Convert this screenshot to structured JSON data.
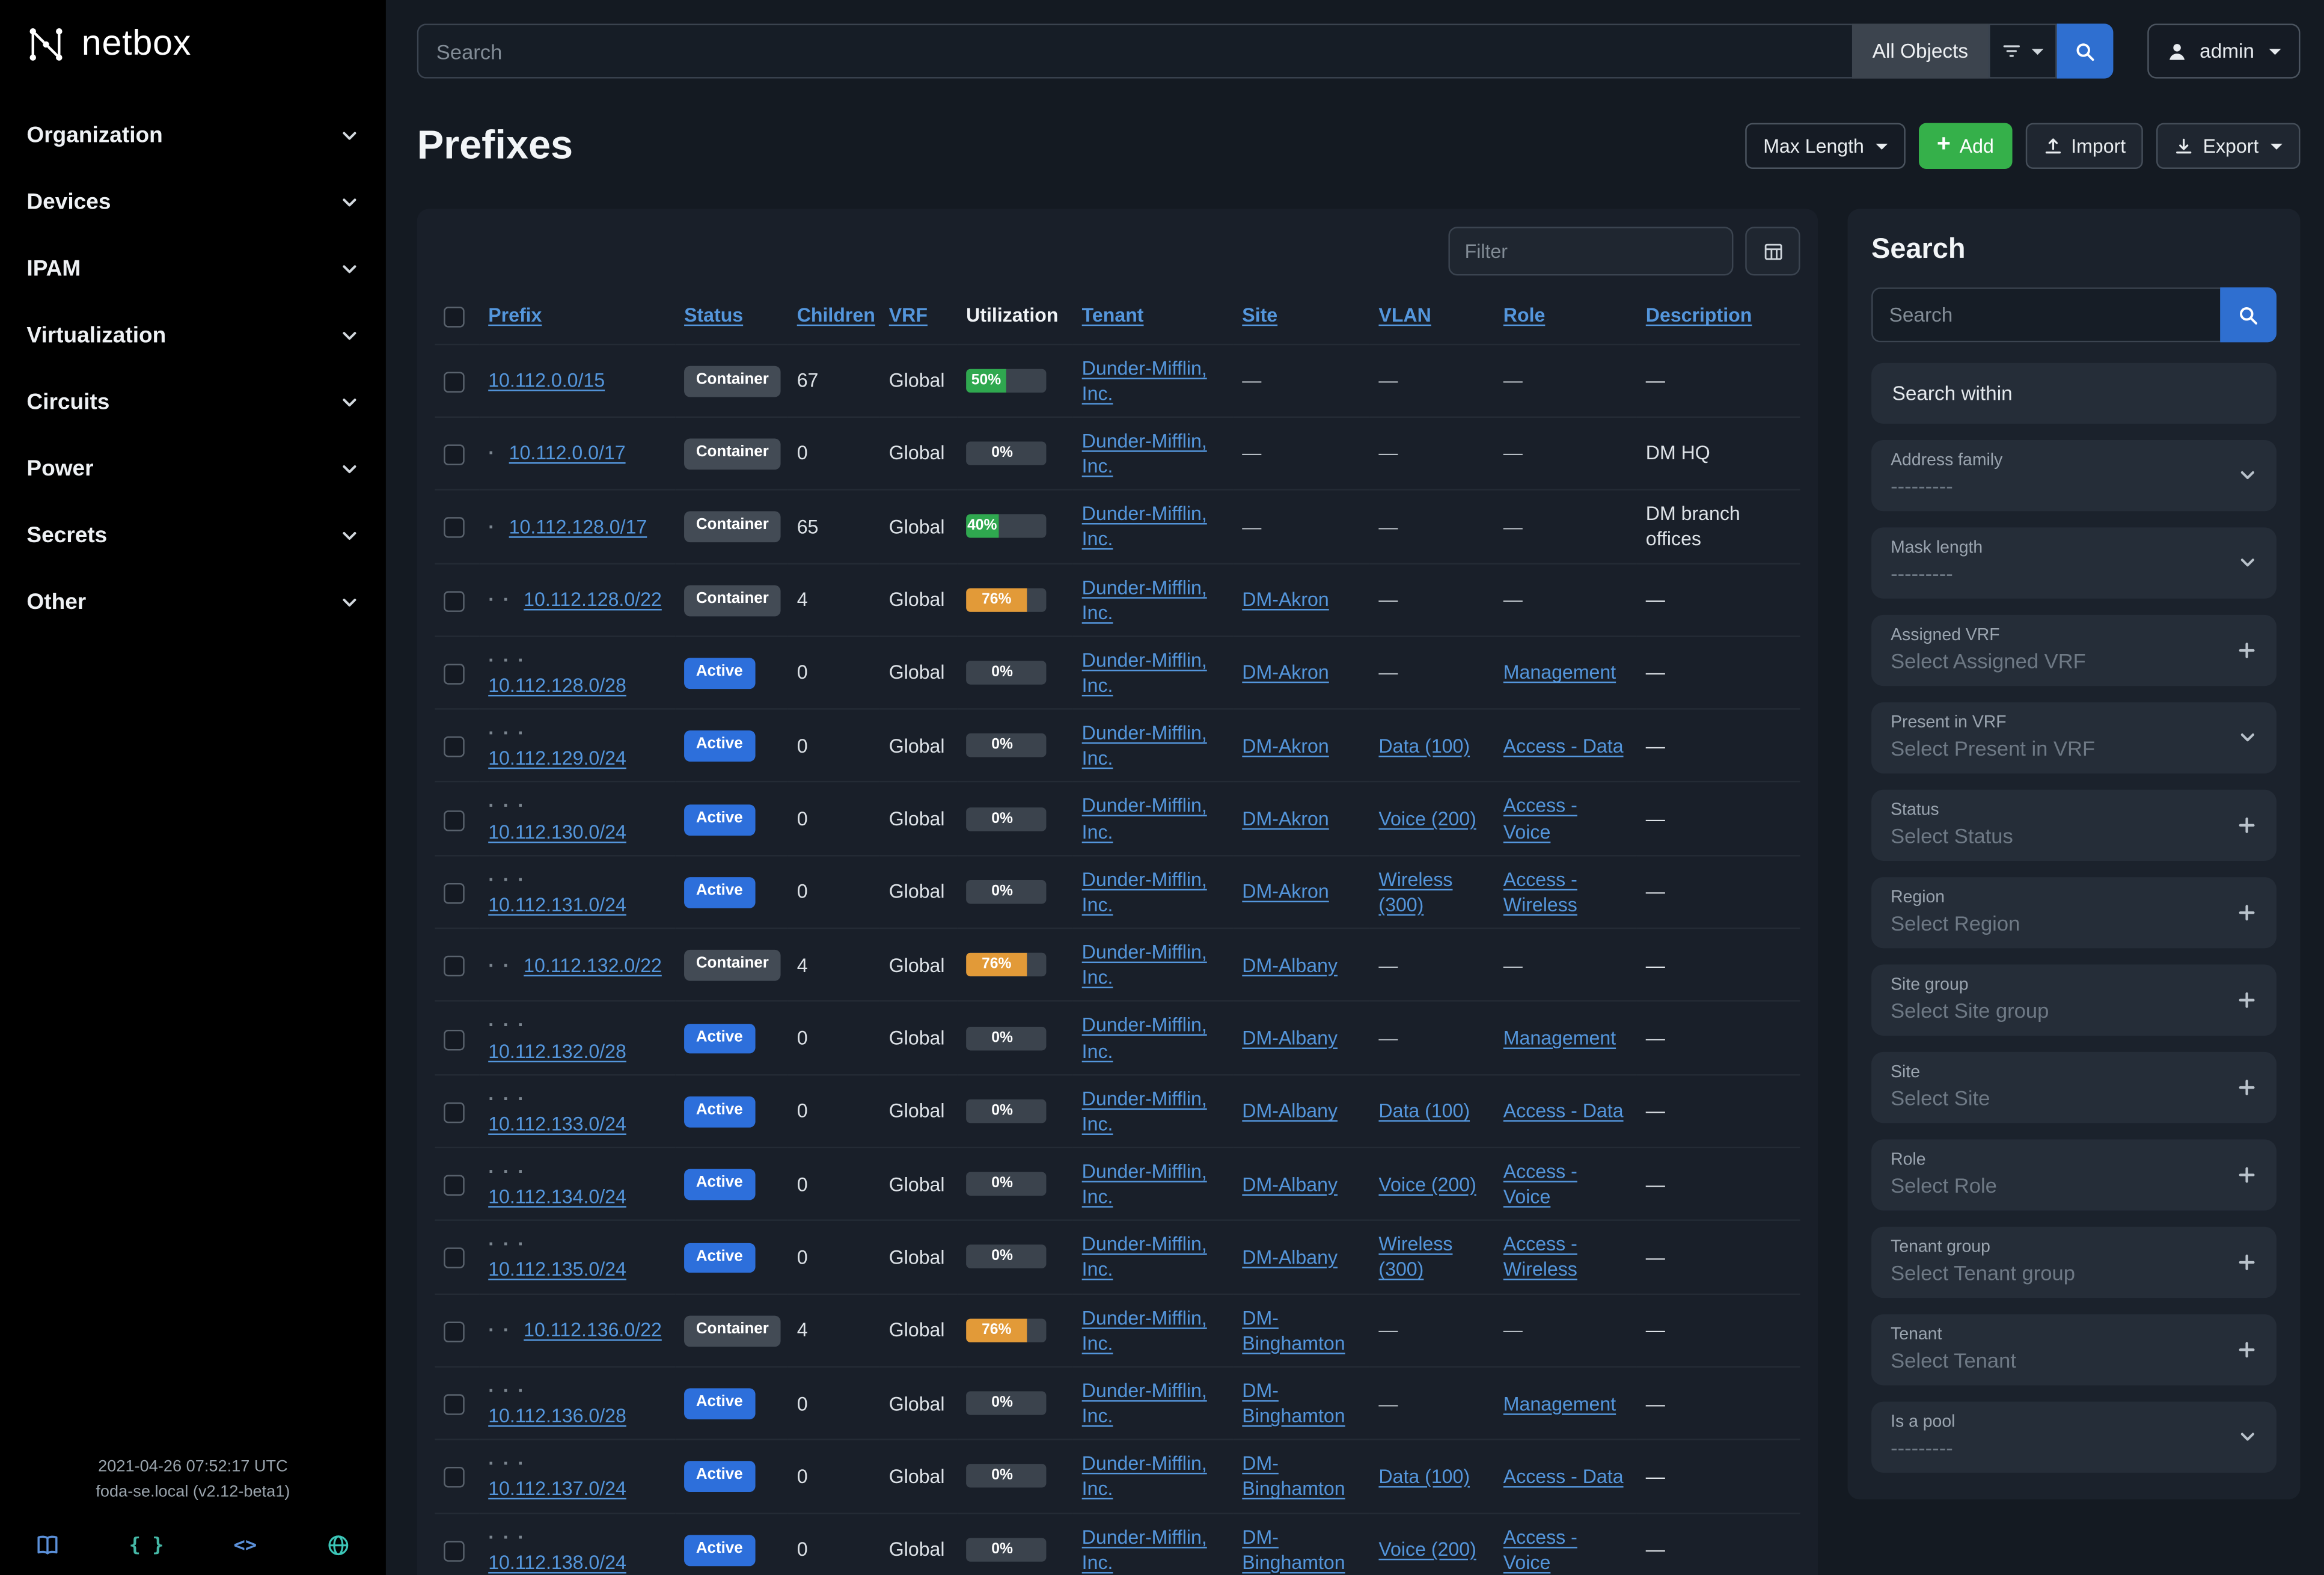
{
  "colors": {
    "accent_blue": "#2f6fd0",
    "accent_green": "#35b04a",
    "link": "#5496dc",
    "badge_active": "#2d6fdb",
    "badge_container": "#434b55",
    "util_green": "#2fa84f",
    "util_orange": "#e29a38"
  },
  "brand": {
    "name": "netbox"
  },
  "sidebar": {
    "items": [
      {
        "label": "Organization"
      },
      {
        "label": "Devices"
      },
      {
        "label": "IPAM"
      },
      {
        "label": "Virtualization"
      },
      {
        "label": "Circuits"
      },
      {
        "label": "Power"
      },
      {
        "label": "Secrets"
      },
      {
        "label": "Other"
      }
    ],
    "footer": {
      "timestamp": "2021-04-26 07:52:17 UTC",
      "instance": "foda-se.local (v2.12-beta1)",
      "icons": [
        {
          "name": "book-icon",
          "color": "#5b90d9"
        },
        {
          "name": "braces-icon",
          "color": "#45b8a6"
        },
        {
          "name": "code-icon",
          "color": "#5b90d9"
        },
        {
          "name": "globe-icon",
          "color": "#3cc6b8"
        }
      ]
    }
  },
  "topbar": {
    "search_placeholder": "Search",
    "scope_label": "All Objects",
    "user_label": "admin"
  },
  "page": {
    "title": "Prefixes",
    "actions": {
      "max_length": "Max Length",
      "add": "Add",
      "import": "Import",
      "export": "Export"
    }
  },
  "table": {
    "filter_placeholder": "Filter",
    "columns": [
      {
        "label": "Prefix",
        "sortable": true
      },
      {
        "label": "Status",
        "sortable": true
      },
      {
        "label": "Children",
        "sortable": true
      },
      {
        "label": "VRF",
        "sortable": true
      },
      {
        "label": "Utilization",
        "sortable": false
      },
      {
        "label": "Tenant",
        "sortable": true
      },
      {
        "label": "Site",
        "sortable": true
      },
      {
        "label": "VLAN",
        "sortable": true
      },
      {
        "label": "Role",
        "sortable": true
      },
      {
        "label": "Description",
        "sortable": true
      }
    ],
    "rows": [
      {
        "depth": 0,
        "prefix": "10.112.0.0/15",
        "status": "Container",
        "children": "67",
        "vrf": "Global",
        "utilization": 50,
        "tenant": "Dunder-Mifflin, Inc.",
        "site": "—",
        "vlan": "—",
        "role": "—",
        "description": "—"
      },
      {
        "depth": 1,
        "prefix": "10.112.0.0/17",
        "status": "Container",
        "children": "0",
        "vrf": "Global",
        "utilization": 0,
        "tenant": "Dunder-Mifflin, Inc.",
        "site": "—",
        "vlan": "—",
        "role": "—",
        "description": "DM HQ"
      },
      {
        "depth": 1,
        "prefix": "10.112.128.0/17",
        "status": "Container",
        "children": "65",
        "vrf": "Global",
        "utilization": 40,
        "tenant": "Dunder-Mifflin, Inc.",
        "site": "—",
        "vlan": "—",
        "role": "—",
        "description": "DM branch offices"
      },
      {
        "depth": 2,
        "prefix": "10.112.128.0/22",
        "status": "Container",
        "children": "4",
        "vrf": "Global",
        "utilization": 76,
        "tenant": "Dunder-Mifflin, Inc.",
        "site": "DM-Akron",
        "vlan": "—",
        "role": "—",
        "description": "—"
      },
      {
        "depth": 3,
        "prefix": "10.112.128.0/28",
        "status": "Active",
        "children": "0",
        "vrf": "Global",
        "utilization": 0,
        "tenant": "Dunder-Mifflin, Inc.",
        "site": "DM-Akron",
        "vlan": "—",
        "role": "Management",
        "description": "—"
      },
      {
        "depth": 3,
        "prefix": "10.112.129.0/24",
        "status": "Active",
        "children": "0",
        "vrf": "Global",
        "utilization": 0,
        "tenant": "Dunder-Mifflin, Inc.",
        "site": "DM-Akron",
        "vlan": "Data (100)",
        "role": "Access - Data",
        "description": "—"
      },
      {
        "depth": 3,
        "prefix": "10.112.130.0/24",
        "status": "Active",
        "children": "0",
        "vrf": "Global",
        "utilization": 0,
        "tenant": "Dunder-Mifflin, Inc.",
        "site": "DM-Akron",
        "vlan": "Voice (200)",
        "role": "Access - Voice",
        "description": "—"
      },
      {
        "depth": 3,
        "prefix": "10.112.131.0/24",
        "status": "Active",
        "children": "0",
        "vrf": "Global",
        "utilization": 0,
        "tenant": "Dunder-Mifflin, Inc.",
        "site": "DM-Akron",
        "vlan": "Wireless (300)",
        "role": "Access - Wireless",
        "description": "—"
      },
      {
        "depth": 2,
        "prefix": "10.112.132.0/22",
        "status": "Container",
        "children": "4",
        "vrf": "Global",
        "utilization": 76,
        "tenant": "Dunder-Mifflin, Inc.",
        "site": "DM-Albany",
        "vlan": "—",
        "role": "—",
        "description": "—"
      },
      {
        "depth": 3,
        "prefix": "10.112.132.0/28",
        "status": "Active",
        "children": "0",
        "vrf": "Global",
        "utilization": 0,
        "tenant": "Dunder-Mifflin, Inc.",
        "site": "DM-Albany",
        "vlan": "—",
        "role": "Management",
        "description": "—"
      },
      {
        "depth": 3,
        "prefix": "10.112.133.0/24",
        "status": "Active",
        "children": "0",
        "vrf": "Global",
        "utilization": 0,
        "tenant": "Dunder-Mifflin, Inc.",
        "site": "DM-Albany",
        "vlan": "Data (100)",
        "role": "Access - Data",
        "description": "—"
      },
      {
        "depth": 3,
        "prefix": "10.112.134.0/24",
        "status": "Active",
        "children": "0",
        "vrf": "Global",
        "utilization": 0,
        "tenant": "Dunder-Mifflin, Inc.",
        "site": "DM-Albany",
        "vlan": "Voice (200)",
        "role": "Access - Voice",
        "description": "—"
      },
      {
        "depth": 3,
        "prefix": "10.112.135.0/24",
        "status": "Active",
        "children": "0",
        "vrf": "Global",
        "utilization": 0,
        "tenant": "Dunder-Mifflin, Inc.",
        "site": "DM-Albany",
        "vlan": "Wireless (300)",
        "role": "Access - Wireless",
        "description": "—"
      },
      {
        "depth": 2,
        "prefix": "10.112.136.0/22",
        "status": "Container",
        "children": "4",
        "vrf": "Global",
        "utilization": 76,
        "tenant": "Dunder-Mifflin, Inc.",
        "site": "DM-Binghamton",
        "vlan": "—",
        "role": "—",
        "description": "—"
      },
      {
        "depth": 3,
        "prefix": "10.112.136.0/28",
        "status": "Active",
        "children": "0",
        "vrf": "Global",
        "utilization": 0,
        "tenant": "Dunder-Mifflin, Inc.",
        "site": "DM-Binghamton",
        "vlan": "—",
        "role": "Management",
        "description": "—"
      },
      {
        "depth": 3,
        "prefix": "10.112.137.0/24",
        "status": "Active",
        "children": "0",
        "vrf": "Global",
        "utilization": 0,
        "tenant": "Dunder-Mifflin, Inc.",
        "site": "DM-Binghamton",
        "vlan": "Data (100)",
        "role": "Access - Data",
        "description": "—"
      },
      {
        "depth": 3,
        "prefix": "10.112.138.0/24",
        "status": "Active",
        "children": "0",
        "vrf": "Global",
        "utilization": 0,
        "tenant": "Dunder-Mifflin, Inc.",
        "site": "DM-Binghamton",
        "vlan": "Voice (200)",
        "role": "Access - Voice",
        "description": "—"
      }
    ]
  },
  "search_panel": {
    "title": "Search",
    "search_placeholder": "Search",
    "within_label": "Search within",
    "groups": [
      {
        "label": "Address family",
        "placeholder": "---------",
        "control": "select"
      },
      {
        "label": "Mask length",
        "placeholder": "---------",
        "control": "select"
      },
      {
        "label": "Assigned VRF",
        "placeholder": "Select Assigned VRF",
        "control": "add"
      },
      {
        "label": "Present in VRF",
        "placeholder": "Select Present in VRF",
        "control": "select"
      },
      {
        "label": "Status",
        "placeholder": "Select Status",
        "control": "add"
      },
      {
        "label": "Region",
        "placeholder": "Select Region",
        "control": "add"
      },
      {
        "label": "Site group",
        "placeholder": "Select Site group",
        "control": "add"
      },
      {
        "label": "Site",
        "placeholder": "Select Site",
        "control": "add"
      },
      {
        "label": "Role",
        "placeholder": "Select Role",
        "control": "add"
      },
      {
        "label": "Tenant group",
        "placeholder": "Select Tenant group",
        "control": "add"
      },
      {
        "label": "Tenant",
        "placeholder": "Select Tenant",
        "control": "add"
      },
      {
        "label": "Is a pool",
        "placeholder": "---------",
        "control": "select"
      }
    ]
  }
}
